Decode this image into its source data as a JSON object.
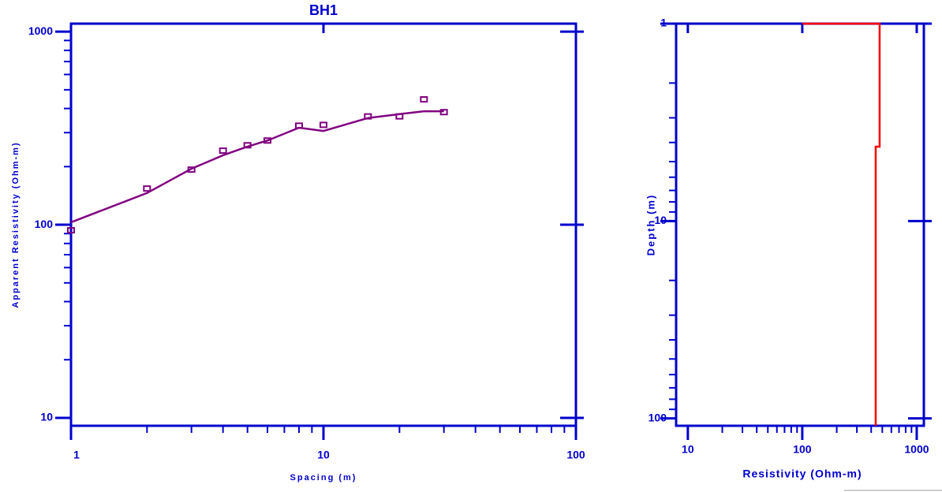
{
  "chart_data": [
    {
      "type": "line",
      "title": "BH1",
      "x_label": "Spacing (m)",
      "y_label": "Apparent Resistivity (Ohm-m)",
      "xscale": "log",
      "yscale": "log",
      "color": "#0000cc",
      "xlim": [
        1,
        100
      ],
      "xticks": [
        1,
        10,
        100
      ],
      "xminorticks": [
        2,
        3,
        4,
        5,
        6,
        7,
        8,
        9,
        20,
        30,
        40,
        50,
        60,
        70,
        80,
        90
      ],
      "ylim": [
        9.1,
        1100
      ],
      "yticks": [
        10,
        100,
        1000
      ],
      "yminorticks": [
        20,
        30,
        40,
        50,
        60,
        70,
        80,
        90,
        200,
        300,
        400,
        500,
        600,
        700,
        800,
        900
      ],
      "x": [
        1,
        2,
        3,
        4,
        5,
        6,
        8,
        10,
        15,
        20,
        25,
        30
      ],
      "series": [
        {
          "mode": "markers",
          "color": "#800080",
          "values": [
            93.6,
            154,
            193,
            242,
            258,
            273,
            326,
            329,
            364,
            364,
            446,
            383
          ]
        },
        {
          "mode": "line",
          "color": "#800080",
          "values": [
            103,
            146,
            195,
            229,
            254,
            273,
            318,
            306,
            357,
            374,
            387,
            387
          ]
        }
      ]
    },
    {
      "type": "line",
      "x_label": "Resistivity (Ohm-m)",
      "y_label": "Depth (m)",
      "xscale": "log",
      "yscale": "log",
      "yinvert": true,
      "color": "#0000cc",
      "xlim": [
        7.9,
        1154
      ],
      "xticks": [
        10,
        100,
        1000
      ],
      "xminorticks": [
        20,
        30,
        40,
        50,
        60,
        70,
        80,
        90,
        200,
        300,
        400,
        500,
        600,
        700,
        800,
        900
      ],
      "ylim": [
        1,
        109
      ],
      "yticks": [
        1,
        10,
        100
      ],
      "yminorticks": [
        2,
        3,
        4,
        5,
        6,
        7,
        8,
        9,
        20,
        30,
        40,
        50,
        60,
        70,
        80,
        90
      ],
      "series": [
        {
          "mode": "line",
          "color": "#ff0000",
          "x": [
            100,
            474,
            474,
            438,
            438
          ],
          "values": [
            1,
            1,
            4.2,
            4.2,
            109
          ]
        }
      ]
    }
  ]
}
